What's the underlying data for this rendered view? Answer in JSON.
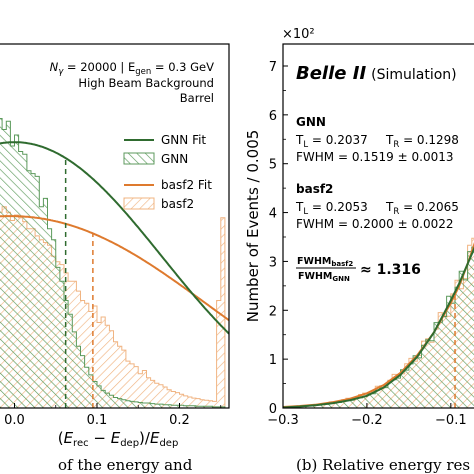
{
  "colors": {
    "gnn": "#2f6b2f",
    "gnn_hatch": "#5c9a5c",
    "basf2": "#de7a2e",
    "basf2_hatch": "#f0b482"
  },
  "chart_data": [
    {
      "type": "histogram",
      "xlabel": "(E_rec − E_dep)/E_dep",
      "xticks": [
        "0.0",
        "0.1",
        "0.2"
      ],
      "xlim": [
        -0.02,
        0.26
      ],
      "ylim": [
        0,
        6.6
      ],
      "annotation": {
        "line1_a": "N",
        "line1_sub": "γ",
        "line1_b": " = 20000 | E",
        "line1_sub2": "gen",
        "line1_c": " = 0.3 GeV",
        "line2": "High Beam Background",
        "line3": "Barrel"
      },
      "legend": [
        {
          "label": "GNN Fit",
          "kind": "line",
          "series": "gnn"
        },
        {
          "label": "GNN",
          "kind": "hatch",
          "series": "gnn"
        },
        {
          "label": "basf2 Fit",
          "kind": "line",
          "series": "basf2"
        },
        {
          "label": "basf2",
          "kind": "hatch",
          "series": "basf2"
        }
      ],
      "gnn_fit": {
        "mode": 0.0,
        "peak": 4.82,
        "tL": 0.2037,
        "tR": 0.1298,
        "fwhm": 0.1519
      },
      "basf2_fit": {
        "mode": -0.005,
        "peak": 3.48,
        "tL": 0.2053,
        "tR": 0.2065,
        "fwhm": 0.2
      },
      "gnn_hist": {
        "x": [
          -0.02,
          -0.015,
          -0.01,
          -0.005,
          0.0,
          0.005,
          0.01,
          0.015,
          0.02,
          0.025,
          0.03,
          0.035,
          0.04,
          0.045,
          0.05,
          0.055,
          0.06,
          0.065,
          0.07,
          0.075,
          0.08,
          0.085,
          0.09,
          0.095,
          0.1,
          0.105,
          0.11,
          0.115,
          0.12,
          0.125,
          0.13,
          0.135,
          0.14,
          0.145,
          0.15,
          0.155,
          0.16,
          0.165,
          0.17,
          0.175,
          0.18,
          0.185,
          0.19,
          0.195,
          0.2,
          0.205,
          0.21,
          0.215,
          0.22,
          0.225,
          0.23,
          0.235,
          0.24,
          0.245,
          0.25
        ],
        "y": [
          5.25,
          5.05,
          5.2,
          4.75,
          4.95,
          4.65,
          4.6,
          4.3,
          4.25,
          4.2,
          3.65,
          3.8,
          3.25,
          3.05,
          2.55,
          2.3,
          1.95,
          1.7,
          1.38,
          1.12,
          0.95,
          0.74,
          0.6,
          0.48,
          0.4,
          0.32,
          0.27,
          0.23,
          0.19,
          0.17,
          0.15,
          0.13,
          0.12,
          0.11,
          0.1,
          0.09,
          0.09,
          0.08,
          0.07,
          0.07,
          0.06,
          0.06,
          0.05,
          0.05,
          0.05,
          0.04,
          0.04,
          0.04,
          0.03,
          0.03,
          0.03,
          0.03,
          0.02,
          0.02,
          0.02
        ]
      },
      "basf2_hist": {
        "x": [
          -0.02,
          -0.015,
          -0.01,
          -0.005,
          0.0,
          0.005,
          0.01,
          0.015,
          0.02,
          0.025,
          0.03,
          0.035,
          0.04,
          0.045,
          0.05,
          0.055,
          0.06,
          0.065,
          0.07,
          0.075,
          0.08,
          0.085,
          0.09,
          0.095,
          0.1,
          0.105,
          0.11,
          0.115,
          0.12,
          0.125,
          0.13,
          0.135,
          0.14,
          0.145,
          0.15,
          0.155,
          0.16,
          0.165,
          0.17,
          0.175,
          0.18,
          0.185,
          0.19,
          0.195,
          0.2,
          0.205,
          0.21,
          0.215,
          0.22,
          0.225,
          0.23,
          0.235,
          0.24,
          0.245,
          0.25
        ],
        "y": [
          3.55,
          3.65,
          3.55,
          3.4,
          3.5,
          3.45,
          3.38,
          3.25,
          3.25,
          3.12,
          3.05,
          3.0,
          2.95,
          2.75,
          2.65,
          2.6,
          2.45,
          2.3,
          2.3,
          2.12,
          1.95,
          1.9,
          1.75,
          1.85,
          1.55,
          1.65,
          1.5,
          1.4,
          1.2,
          1.12,
          1.05,
          0.85,
          0.8,
          0.75,
          0.62,
          0.68,
          0.55,
          0.5,
          0.45,
          0.42,
          0.38,
          0.33,
          0.3,
          0.28,
          0.25,
          0.22,
          0.2,
          0.18,
          0.17,
          0.15,
          0.14,
          0.13,
          0.12,
          1.95,
          3.45
        ]
      },
      "gnn_cut": 0.062,
      "basf2_cut": 0.095
    },
    {
      "type": "histogram",
      "ylabel": "Number of Events / 0.005",
      "multiplier": "×10²",
      "xticks": [
        "−0.3",
        "−0.2",
        "−0.1"
      ],
      "yticks": [
        "0",
        "1",
        "2",
        "3",
        "4",
        "5",
        "6",
        "7"
      ],
      "xlim": [
        -0.3,
        -0.07
      ],
      "ylim": [
        0,
        7.45
      ],
      "belle_title": "Belle II",
      "belle_sub": "(Simulation)",
      "gnn_block": {
        "name": "GNN",
        "tl_label": "T",
        "tl_sub": "L",
        "tl_val": " = 0.2037",
        "tr_label": "T",
        "tr_sub": "R",
        "tr_val": " = 0.1298",
        "fwhm": "FWHM = 0.1519 ± 0.0013"
      },
      "basf2_block": {
        "name": "basf2",
        "tl_label": "T",
        "tl_sub": "L",
        "tl_val": " = 0.2053",
        "tr_label": "T",
        "tr_sub": "R",
        "tr_val": " = 0.2065",
        "fwhm": "FWHM = 0.2000 ± 0.0022"
      },
      "ratio": {
        "num": "FWHM",
        "num_sub": "basf2",
        "den": "FWHM",
        "den_sub": "GNN",
        "value": "≈ 1.316"
      },
      "gnn_curve": {
        "x": [
          -0.3,
          -0.28,
          -0.26,
          -0.24,
          -0.22,
          -0.2,
          -0.18,
          -0.16,
          -0.14,
          -0.12,
          -0.1,
          -0.09,
          -0.08,
          -0.07
        ],
        "y": [
          0.01,
          0.03,
          0.06,
          0.1,
          0.16,
          0.25,
          0.42,
          0.68,
          1.05,
          1.55,
          2.2,
          2.55,
          2.95,
          3.35
        ]
      },
      "basf2_curve": {
        "x": [
          -0.3,
          -0.28,
          -0.26,
          -0.24,
          -0.22,
          -0.2,
          -0.18,
          -0.16,
          -0.14,
          -0.12,
          -0.1,
          -0.09,
          -0.08,
          -0.07
        ],
        "y": [
          0.02,
          0.04,
          0.07,
          0.12,
          0.19,
          0.3,
          0.47,
          0.72,
          1.08,
          1.55,
          2.15,
          2.5,
          2.95,
          3.45
        ]
      },
      "basf2_cut": -0.095
    }
  ],
  "caption": {
    "left": "of the energy and",
    "right": "(b) Relative energy res"
  }
}
